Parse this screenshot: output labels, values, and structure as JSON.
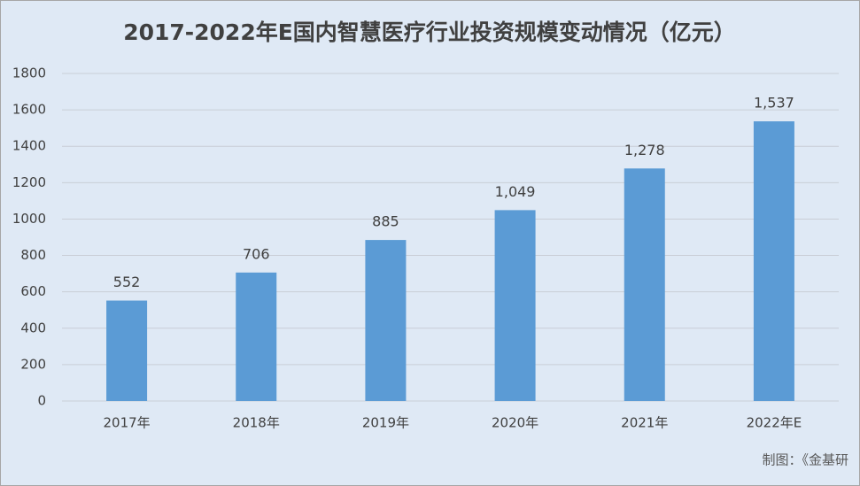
{
  "chart_data": {
    "type": "bar",
    "title": "2017-2022年E国内智慧医疗行业投资规模变动情况（亿元）",
    "categories": [
      "2017年",
      "2018年",
      "2019年",
      "2020年",
      "2021年",
      "2022年E"
    ],
    "values": [
      552,
      706,
      885,
      1049,
      1278,
      1537
    ],
    "value_labels": [
      "552",
      "706",
      "885",
      "1,049",
      "1,278",
      "1,537"
    ],
    "color": "#5b9bd5",
    "ylim": [
      0,
      1800
    ],
    "yticks": [
      0,
      200,
      400,
      600,
      800,
      1000,
      1200,
      1400,
      1600,
      1800
    ],
    "grid": true,
    "source": "制图：《金基研"
  }
}
